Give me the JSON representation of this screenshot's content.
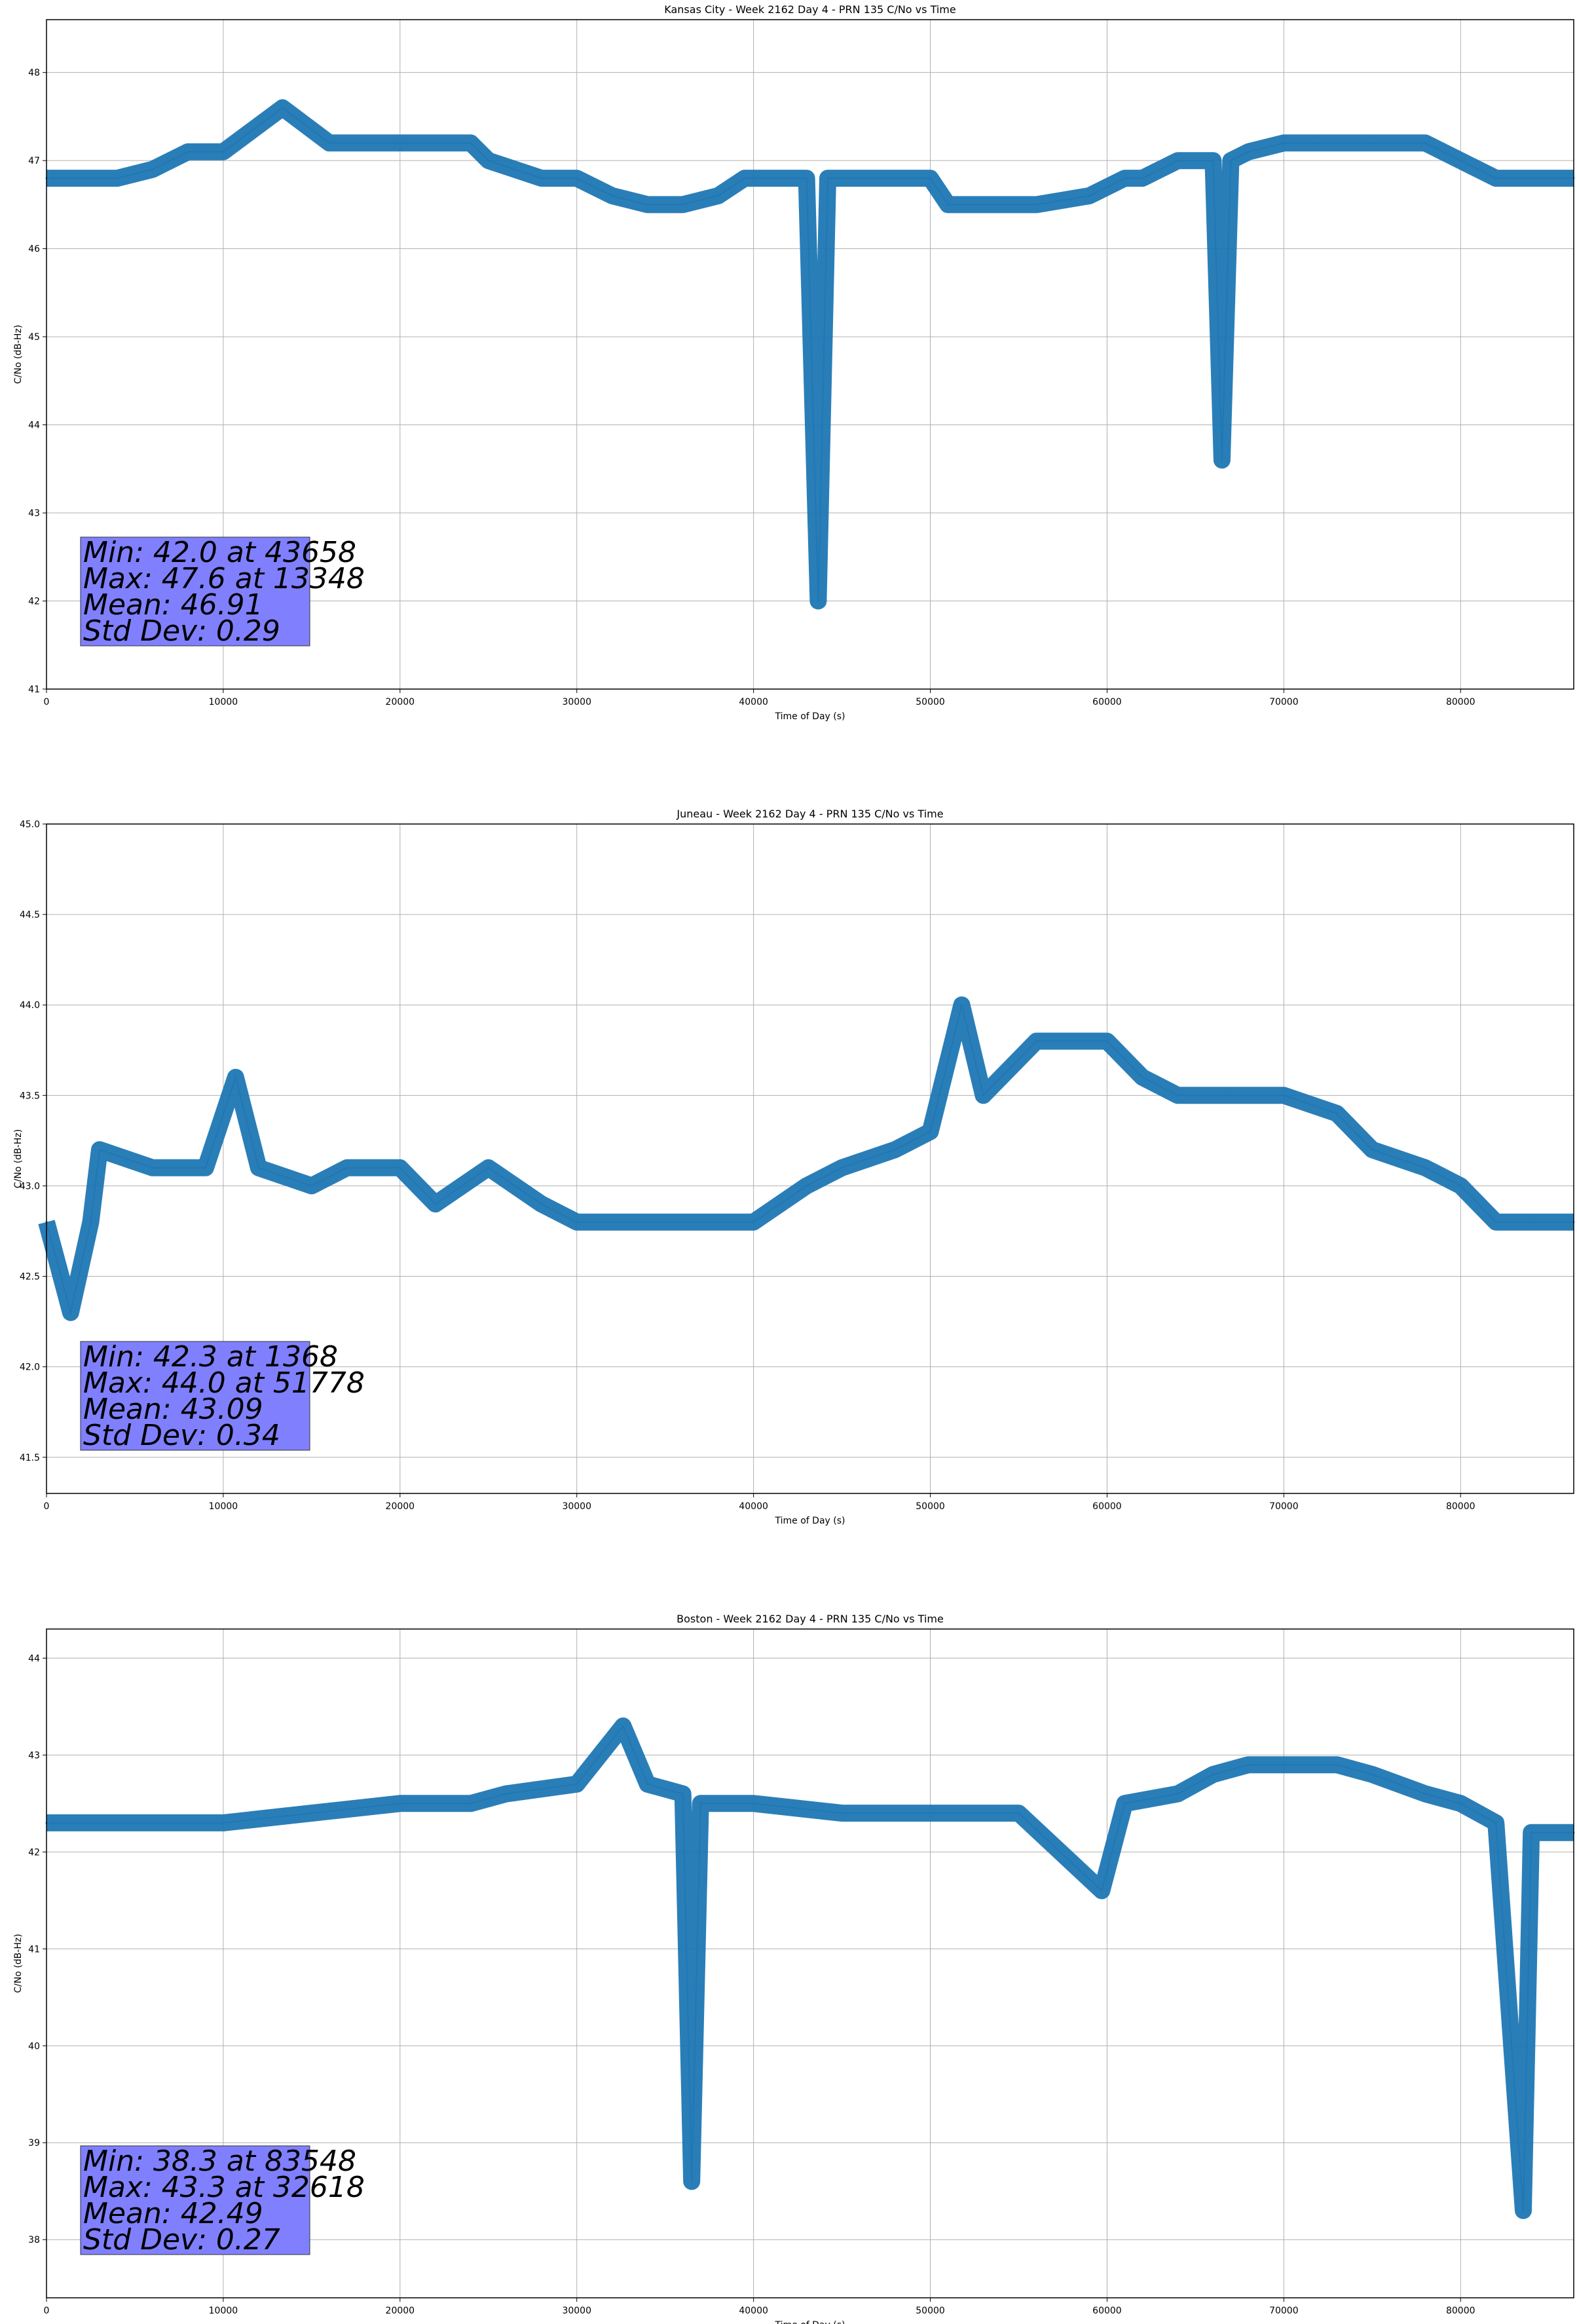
{
  "figure": {
    "line_color": "#1f77b4",
    "stats_box_color": "#8080ff"
  },
  "chart_data": [
    {
      "type": "line",
      "title": "Kansas City - Week 2162 Day 4 - PRN 135 C/No vs Time",
      "xlabel": "Time of Day (s)",
      "ylabel": "C/No (dB-Hz)",
      "xlim": [
        0,
        86400
      ],
      "ylim": [
        41,
        48.6
      ],
      "xticks": [
        0,
        10000,
        20000,
        30000,
        40000,
        50000,
        60000,
        70000,
        80000
      ],
      "yticks": [
        41,
        42,
        43,
        44,
        45,
        46,
        47,
        48
      ],
      "ytick_labels": [
        "41",
        "42",
        "43",
        "44",
        "45",
        "46",
        "47",
        "48"
      ],
      "grid": true,
      "series": [
        {
          "x": [
            0,
            2000,
            4000,
            6000,
            8000,
            10000,
            13348,
            16000,
            20000,
            24000,
            25000,
            28000,
            30000,
            32000,
            34000,
            36000,
            38000,
            39500,
            42000,
            43000,
            43658,
            44200,
            46000,
            48000,
            50000,
            51000,
            53000,
            56000,
            59000,
            61000,
            62000,
            64000,
            66000,
            66500,
            67000,
            68000,
            70000,
            72000,
            75000,
            78000,
            80000,
            82000,
            84000,
            86400
          ],
          "y": [
            46.8,
            46.8,
            46.8,
            46.9,
            47.1,
            47.1,
            47.6,
            47.2,
            47.2,
            47.2,
            47.0,
            46.8,
            46.8,
            46.6,
            46.5,
            46.5,
            46.6,
            46.8,
            46.8,
            46.8,
            42.0,
            46.8,
            46.8,
            46.8,
            46.8,
            46.5,
            46.5,
            46.5,
            46.6,
            46.8,
            46.8,
            47.0,
            47.0,
            43.6,
            47.0,
            47.1,
            47.2,
            47.2,
            47.2,
            47.2,
            47.0,
            46.8,
            46.8,
            46.8
          ]
        }
      ],
      "stats": [
        "Min: 42.0 at 43658",
        "Max: 47.6 at 13348",
        "Mean: 46.91",
        "Std Dev: 0.29"
      ]
    },
    {
      "type": "line",
      "title": "Juneau - Week 2162 Day 4 - PRN 135 C/No vs Time",
      "xlabel": "Time of Day (s)",
      "ylabel": "C/No (dB-Hz)",
      "xlim": [
        0,
        86400
      ],
      "ylim": [
        41.3,
        45.0
      ],
      "xticks": [
        0,
        10000,
        20000,
        30000,
        40000,
        50000,
        60000,
        70000,
        80000
      ],
      "yticks": [
        41.5,
        42.0,
        42.5,
        43.0,
        43.5,
        44.0,
        44.5,
        45.0
      ],
      "ytick_labels": [
        "41.5",
        "42.0",
        "42.5",
        "43.0",
        "43.5",
        "44.0",
        "44.5",
        "45.0"
      ],
      "grid": true,
      "series": [
        {
          "x": [
            0,
            1368,
            2500,
            3000,
            6000,
            9000,
            10700,
            12000,
            15000,
            17000,
            20000,
            22000,
            25000,
            28000,
            30000,
            33000,
            36000,
            40000,
            43000,
            45000,
            48000,
            50000,
            51778,
            53000,
            56000,
            60000,
            62000,
            64000,
            67000,
            70000,
            73000,
            75000,
            78000,
            80000,
            82000,
            84000,
            86400
          ],
          "y": [
            42.8,
            42.3,
            42.8,
            43.2,
            43.1,
            43.1,
            43.6,
            43.1,
            43.0,
            43.1,
            43.1,
            42.9,
            43.1,
            42.9,
            42.8,
            42.8,
            42.8,
            42.8,
            43.0,
            43.1,
            43.2,
            43.3,
            44.0,
            43.5,
            43.8,
            43.8,
            43.6,
            43.5,
            43.5,
            43.5,
            43.4,
            43.2,
            43.1,
            43.0,
            42.8,
            42.8,
            42.8
          ]
        }
      ],
      "stats": [
        "Min: 42.3 at 1368",
        "Max: 44.0 at 51778",
        "Mean: 43.09",
        "Std Dev: 0.34"
      ]
    },
    {
      "type": "line",
      "title": "Boston - Week 2162 Day 4 - PRN 135 C/No vs Time",
      "xlabel": "Time of Day (s)",
      "ylabel": "C/No (dB-Hz)",
      "xlim": [
        0,
        86400
      ],
      "ylim": [
        37.4,
        44.3
      ],
      "xticks": [
        0,
        10000,
        20000,
        30000,
        40000,
        50000,
        60000,
        70000,
        80000
      ],
      "yticks": [
        38,
        39,
        40,
        41,
        42,
        43,
        44
      ],
      "ytick_labels": [
        "38",
        "39",
        "40",
        "41",
        "42",
        "43",
        "44"
      ],
      "grid": true,
      "series": [
        {
          "x": [
            0,
            3000,
            6000,
            10000,
            15000,
            20000,
            24000,
            26000,
            30000,
            32618,
            34000,
            36000,
            36500,
            37000,
            40000,
            45000,
            50000,
            55000,
            59700,
            61000,
            64000,
            66000,
            68000,
            70000,
            73000,
            75000,
            78000,
            80000,
            82000,
            83548,
            84000,
            86400
          ],
          "y": [
            42.3,
            42.3,
            42.3,
            42.3,
            42.4,
            42.5,
            42.5,
            42.6,
            42.7,
            43.3,
            42.7,
            42.6,
            38.6,
            42.5,
            42.5,
            42.4,
            42.4,
            42.4,
            41.6,
            42.5,
            42.6,
            42.8,
            42.9,
            42.9,
            42.9,
            42.8,
            42.6,
            42.5,
            42.3,
            38.3,
            42.2,
            42.2
          ]
        }
      ],
      "stats": [
        "Min: 38.3 at 83548",
        "Max: 43.3 at 32618",
        "Mean: 42.49",
        "Std Dev: 0.27"
      ]
    }
  ]
}
